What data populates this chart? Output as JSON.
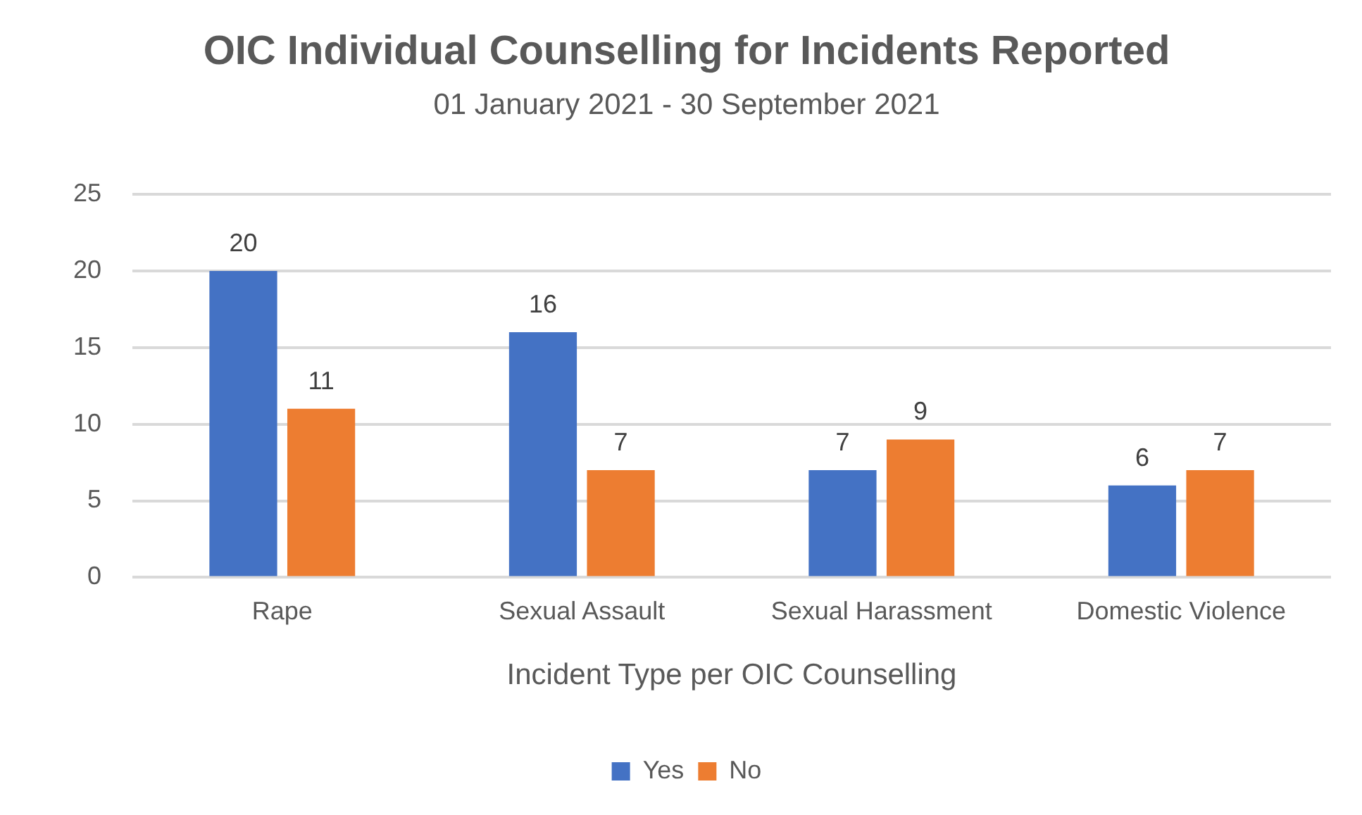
{
  "chart_data": {
    "type": "bar",
    "title": "OIC Individual Counselling for Incidents Reported",
    "subtitle": "01 January 2021 - 30 September 2021",
    "xlabel": "Incident Type per OIC Counselling",
    "categories": [
      "Rape",
      "Sexual Assault",
      "Sexual Harassment",
      "Domestic Violence"
    ],
    "series": [
      {
        "name": "Yes",
        "color": "#4472c4",
        "values": [
          20,
          16,
          7,
          6
        ]
      },
      {
        "name": "No",
        "color": "#ed7d31",
        "values": [
          11,
          7,
          9,
          7
        ]
      }
    ],
    "ylim": [
      0,
      25
    ],
    "yticks": [
      0,
      5,
      10,
      15,
      20,
      25
    ],
    "grid": "y",
    "legend": "bottom",
    "data_labels": true
  }
}
